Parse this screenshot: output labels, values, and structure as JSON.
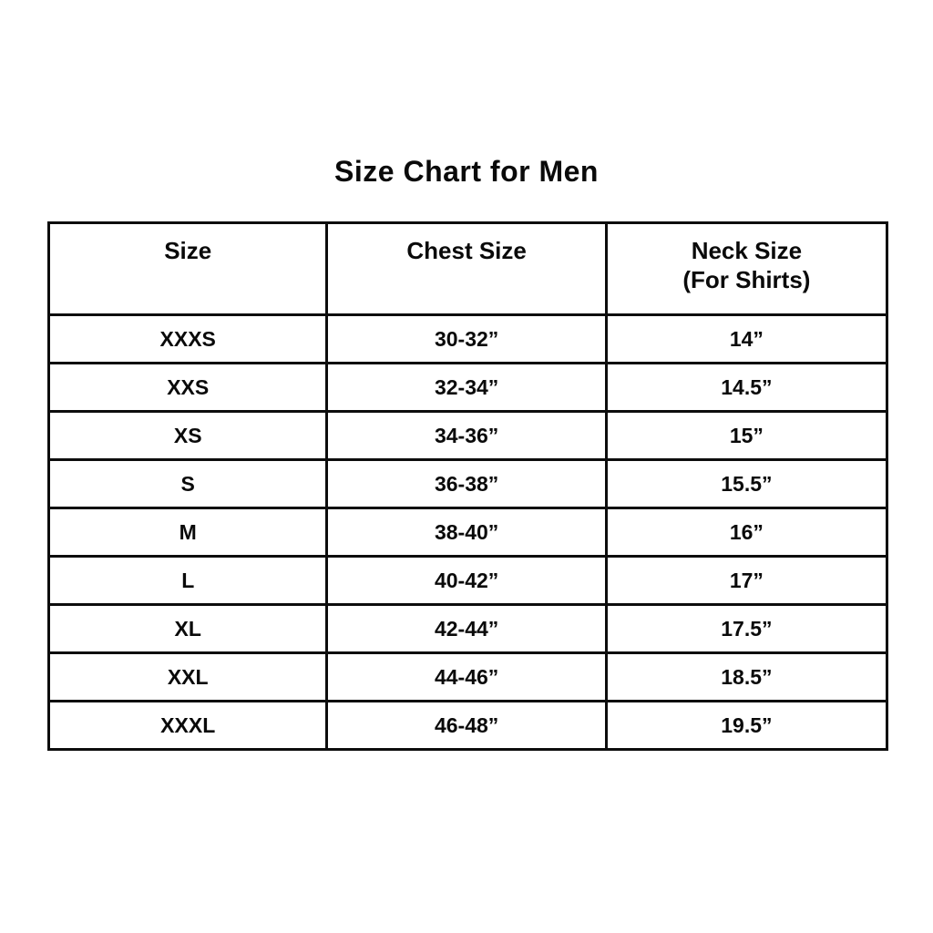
{
  "title": "Size Chart for Men",
  "chart_data": {
    "type": "table",
    "title": "Size Chart for Men",
    "columns": {
      "size": "Size",
      "chest": "Chest Size",
      "neck_line1": "Neck Size",
      "neck_line2": "(For Shirts)"
    },
    "rows": [
      {
        "size": "XXXS",
        "chest": "30-32”",
        "neck": "14”"
      },
      {
        "size": "XXS",
        "chest": "32-34”",
        "neck": "14.5”"
      },
      {
        "size": "XS",
        "chest": "34-36”",
        "neck": "15”"
      },
      {
        "size": "S",
        "chest": "36-38”",
        "neck": "15.5”"
      },
      {
        "size": "M",
        "chest": "38-40”",
        "neck": "16”"
      },
      {
        "size": "L",
        "chest": "40-42”",
        "neck": "17”"
      },
      {
        "size": "XL",
        "chest": "42-44”",
        "neck": "17.5”"
      },
      {
        "size": "XXL",
        "chest": "44-46”",
        "neck": "18.5”"
      },
      {
        "size": "XXXL",
        "chest": "46-48”",
        "neck": "19.5”"
      }
    ],
    "colors": {
      "background": "#ffffff",
      "text": "#0a0a0a",
      "border": "#0d0d0d"
    }
  }
}
